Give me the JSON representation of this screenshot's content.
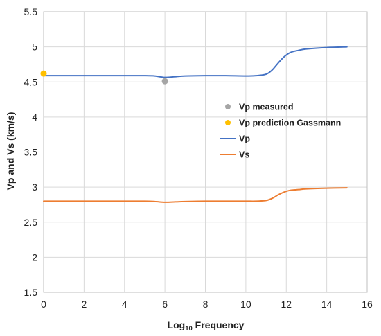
{
  "chart_data": {
    "type": "line",
    "xlabel_base": "Log",
    "xlabel_sub": "10",
    "xlabel_rest": " Frequency",
    "ylabel": "Vp and Vs (km/s)",
    "xlim": [
      0,
      16
    ],
    "ylim": [
      1.5,
      5.5
    ],
    "x_ticks": [
      "0",
      "2",
      "4",
      "6",
      "8",
      "10",
      "12",
      "14",
      "16"
    ],
    "y_ticks": [
      "1.5",
      "2",
      "2.5",
      "3",
      "3.5",
      "4",
      "4.5",
      "5",
      "5.5"
    ],
    "grid": true,
    "legend_position": "center-right",
    "series": [
      {
        "name": "Vp measured",
        "kind": "marker",
        "color": "#a5a5a5",
        "points": [
          [
            6,
            4.51
          ]
        ]
      },
      {
        "name": "Vp prediction Gassmann",
        "kind": "marker",
        "color": "#ffc000",
        "points": [
          [
            0,
            4.62
          ]
        ]
      },
      {
        "name": "Vp",
        "kind": "line",
        "color": "#4472c4",
        "points": [
          [
            0,
            4.59
          ],
          [
            1,
            4.59
          ],
          [
            2,
            4.59
          ],
          [
            3,
            4.59
          ],
          [
            4,
            4.59
          ],
          [
            5,
            4.59
          ],
          [
            5.5,
            4.585
          ],
          [
            6,
            4.565
          ],
          [
            6.5,
            4.575
          ],
          [
            7,
            4.585
          ],
          [
            8,
            4.59
          ],
          [
            9,
            4.59
          ],
          [
            10,
            4.585
          ],
          [
            10.5,
            4.59
          ],
          [
            11,
            4.61
          ],
          [
            11.3,
            4.67
          ],
          [
            11.6,
            4.77
          ],
          [
            11.9,
            4.86
          ],
          [
            12.2,
            4.92
          ],
          [
            12.6,
            4.95
          ],
          [
            13,
            4.97
          ],
          [
            14,
            4.99
          ],
          [
            15,
            5.0
          ]
        ]
      },
      {
        "name": "Vs",
        "kind": "line",
        "color": "#ed7d31",
        "points": [
          [
            0,
            2.8
          ],
          [
            1,
            2.8
          ],
          [
            2,
            2.8
          ],
          [
            3,
            2.8
          ],
          [
            4,
            2.8
          ],
          [
            5,
            2.8
          ],
          [
            5.5,
            2.795
          ],
          [
            6,
            2.785
          ],
          [
            6.5,
            2.79
          ],
          [
            7,
            2.795
          ],
          [
            8,
            2.8
          ],
          [
            9,
            2.8
          ],
          [
            10,
            2.8
          ],
          [
            10.5,
            2.8
          ],
          [
            11,
            2.81
          ],
          [
            11.3,
            2.84
          ],
          [
            11.6,
            2.89
          ],
          [
            11.9,
            2.93
          ],
          [
            12.2,
            2.955
          ],
          [
            12.6,
            2.965
          ],
          [
            13,
            2.975
          ],
          [
            14,
            2.985
          ],
          [
            15,
            2.99
          ]
        ]
      }
    ]
  }
}
